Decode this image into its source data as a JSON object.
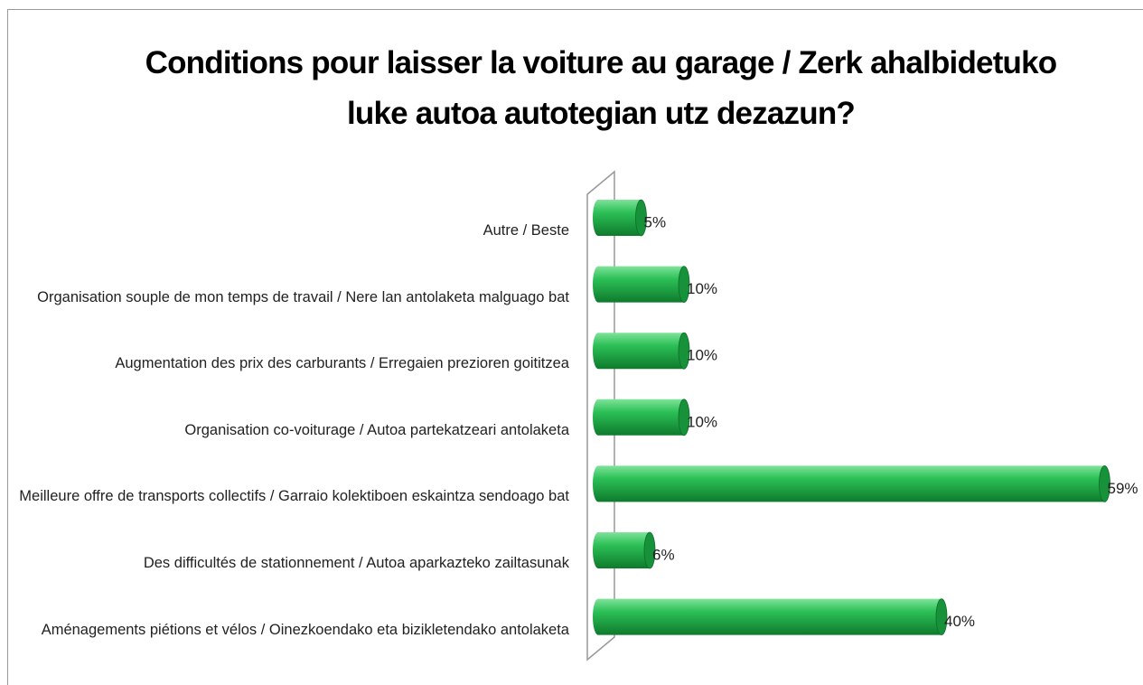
{
  "chart_data": {
    "type": "bar",
    "orientation": "horizontal",
    "title": "Conditions pour laisser la voiture au garage / Zerk ahalbidetuko luke autoa autotegian utz dezazun?",
    "categories": [
      "Autre / Beste",
      "Organisation souple de mon temps de travail / Nere lan  antolaketa malguago bat",
      "Augmentation  des prix des carburants / Erregaien prezioren goititzea",
      "Organisation  co-voiturage / Autoa partekatzeari  antolaketa",
      "Meilleure offre de transports collectifs / Garraio kolektiboen eskaintza sendoago bat",
      "Des difficultés  de stationnement / Autoa aparkazteko zailtasunak",
      "Aménagements  piétions et vélos / Oinezkoendako eta bizikletendako antolaketa"
    ],
    "values": [
      5,
      10,
      10,
      10,
      59,
      6,
      40
    ],
    "value_labels": [
      "5%",
      "10%",
      "10%",
      "10%",
      "59%",
      "6%",
      "40%"
    ],
    "color": "#1fa843"
  }
}
